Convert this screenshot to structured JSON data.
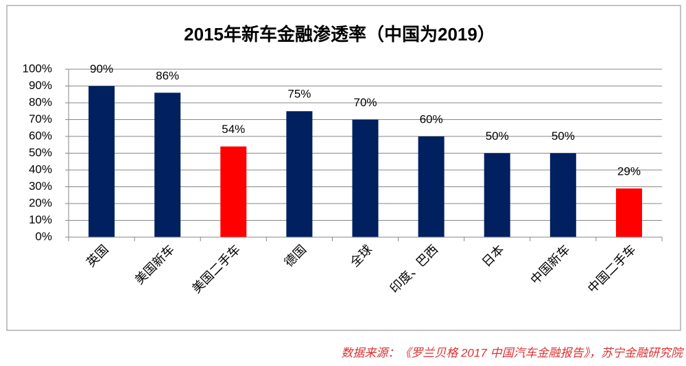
{
  "chart_data": {
    "type": "bar",
    "title": "2015年新车金融渗透率（中国为2019）",
    "categories": [
      "英国",
      "美国新车",
      "美国二手车",
      "德国",
      "全球",
      "印度、巴西",
      "日本",
      "中国新车",
      "中国二手车"
    ],
    "values": [
      90,
      86,
      54,
      75,
      70,
      60,
      50,
      50,
      29
    ],
    "value_labels": [
      "90%",
      "86%",
      "54%",
      "75%",
      "70%",
      "60%",
      "50%",
      "50%",
      "29%"
    ],
    "colors": [
      "#002060",
      "#002060",
      "#ff0000",
      "#002060",
      "#002060",
      "#002060",
      "#002060",
      "#002060",
      "#ff0000"
    ],
    "ylim": [
      0,
      100
    ],
    "yticks": [
      {
        "value": 0,
        "label": "0%"
      },
      {
        "value": 10,
        "label": "10%"
      },
      {
        "value": 20,
        "label": "20%"
      },
      {
        "value": 30,
        "label": "30%"
      },
      {
        "value": 40,
        "label": "40%"
      },
      {
        "value": 50,
        "label": "50%"
      },
      {
        "value": 60,
        "label": "60%"
      },
      {
        "value": 70,
        "label": "70%"
      },
      {
        "value": 80,
        "label": "80%"
      },
      {
        "value": 90,
        "label": "90%"
      },
      {
        "value": 100,
        "label": "100%"
      }
    ],
    "grid": true
  },
  "source": "数据来源：《罗兰贝格 2017 中国汽车金融报告》，苏宁金融研究院"
}
